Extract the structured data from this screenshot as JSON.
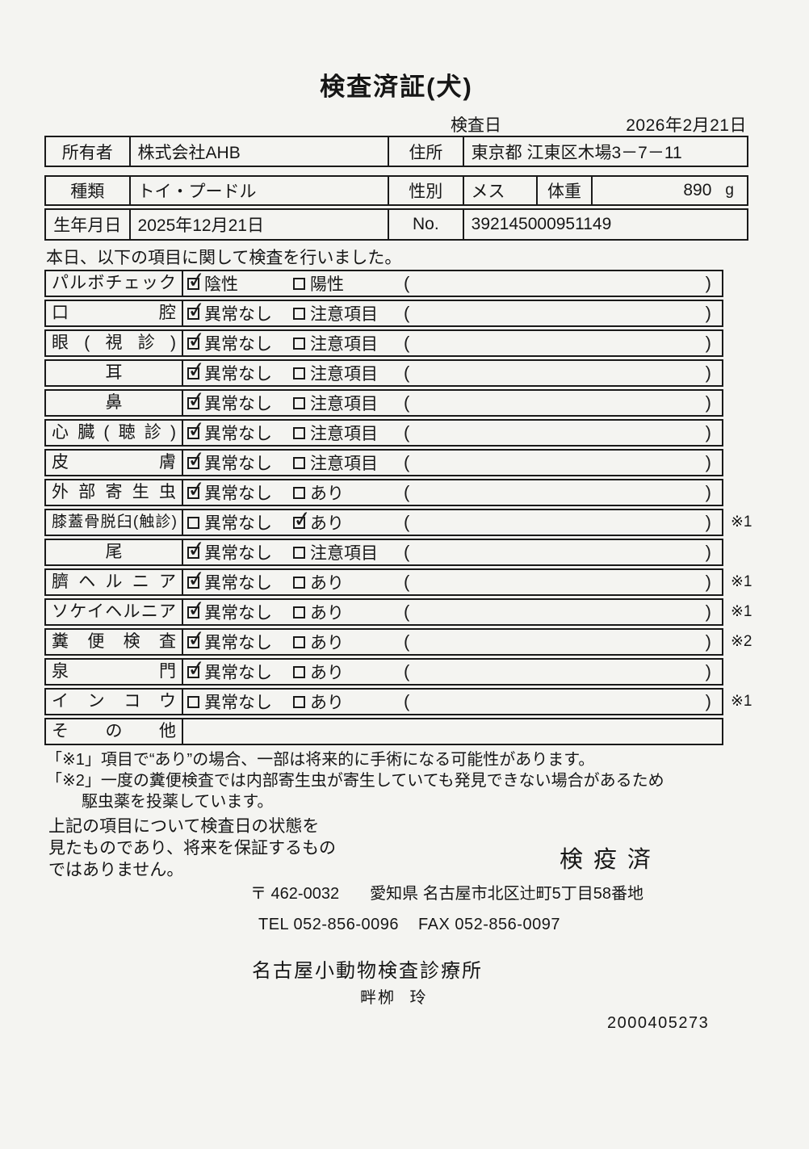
{
  "title": "検査済証(犬)",
  "inspection_date": {
    "label": "検査日",
    "value": "2026年2月21日"
  },
  "owner": {
    "label": "所有者",
    "value": "株式会社AHB",
    "address_label": "住所",
    "address_value": "東京都 江東区木場3－7－11"
  },
  "pet": {
    "breed_label": "種類",
    "breed_value": "トイ・プードル",
    "sex_label": "性別",
    "sex_value": "メス",
    "weight_label": "体重",
    "weight_value": "890",
    "weight_unit": "g",
    "birth_label": "生年月日",
    "birth_value": "2025年12月21日",
    "no_label": "No.",
    "no_value": "392145000951149"
  },
  "intro": "本日、以下の項目に関して検査を行いました。",
  "checklist": {
    "paren_open": "(",
    "paren_close": ")",
    "rows": [
      {
        "label": "パルボチェック",
        "opt1": "陰性",
        "opt1_checked": true,
        "opt2": "陽性",
        "opt2_checked": false,
        "note": ""
      },
      {
        "label": "口腔",
        "opt1": "異常なし",
        "opt1_checked": true,
        "opt2": "注意項目",
        "opt2_checked": false,
        "note": ""
      },
      {
        "label": "眼(視診)",
        "opt1": "異常なし",
        "opt1_checked": true,
        "opt2": "注意項目",
        "opt2_checked": false,
        "note": ""
      },
      {
        "label": "耳",
        "opt1": "異常なし",
        "opt1_checked": true,
        "opt2": "注意項目",
        "opt2_checked": false,
        "note": ""
      },
      {
        "label": "鼻",
        "opt1": "異常なし",
        "opt1_checked": true,
        "opt2": "注意項目",
        "opt2_checked": false,
        "note": ""
      },
      {
        "label": "心臓(聴診)",
        "opt1": "異常なし",
        "opt1_checked": true,
        "opt2": "注意項目",
        "opt2_checked": false,
        "note": ""
      },
      {
        "label": "皮膚",
        "opt1": "異常なし",
        "opt1_checked": true,
        "opt2": "注意項目",
        "opt2_checked": false,
        "note": ""
      },
      {
        "label": "外部寄生虫",
        "opt1": "異常なし",
        "opt1_checked": true,
        "opt2": "あり",
        "opt2_checked": false,
        "note": ""
      },
      {
        "label": "膝蓋骨脱臼(触診)",
        "opt1": "異常なし",
        "opt1_checked": false,
        "opt2": "あり",
        "opt2_checked": true,
        "note": "※1"
      },
      {
        "label": "尾",
        "opt1": "異常なし",
        "opt1_checked": true,
        "opt2": "注意項目",
        "opt2_checked": false,
        "note": ""
      },
      {
        "label": "臍ヘルニア",
        "opt1": "異常なし",
        "opt1_checked": true,
        "opt2": "あり",
        "opt2_checked": false,
        "note": "※1"
      },
      {
        "label": "ソケイヘルニア",
        "opt1": "異常なし",
        "opt1_checked": true,
        "opt2": "あり",
        "opt2_checked": false,
        "note": "※1"
      },
      {
        "label": "糞便検査",
        "opt1": "異常なし",
        "opt1_checked": true,
        "opt2": "あり",
        "opt2_checked": false,
        "note": "※2"
      },
      {
        "label": "泉門",
        "opt1": "異常なし",
        "opt1_checked": true,
        "opt2": "あり",
        "opt2_checked": false,
        "note": ""
      },
      {
        "label": "インコウ",
        "opt1": "異常なし",
        "opt1_checked": false,
        "opt2": "あり",
        "opt2_checked": false,
        "note": "※1"
      },
      {
        "label": "その他",
        "opt1": "",
        "opt1_checked": false,
        "opt2": "",
        "opt2_checked": false,
        "note": ""
      }
    ]
  },
  "footnotes": [
    "「※1」項目で“あり”の場合、一部は将来的に手術になる可能性があります。",
    "「※2」一度の糞便検査では内部寄生虫が寄生していても発見できない場合があるため",
    "駆虫薬を投薬しています。"
  ],
  "disclaimer_lines": [
    "上記の項目について検査日の状態を",
    "見たものであり、将来を保証するもの",
    "ではありません。"
  ],
  "stamp": "検疫済",
  "clinic": {
    "postal": "〒 462-0032",
    "address": "愛知県 名古屋市北区辻町5丁目58番地",
    "tel": "TEL 052-856-0096",
    "fax": "FAX 052-856-0097",
    "name": "名古屋小動物検査診療所",
    "examiner": "畔栁 玲"
  },
  "serial": "2000405273",
  "colors": {
    "paper": "#f4f4f1",
    "ink": "#1a1a1a"
  }
}
